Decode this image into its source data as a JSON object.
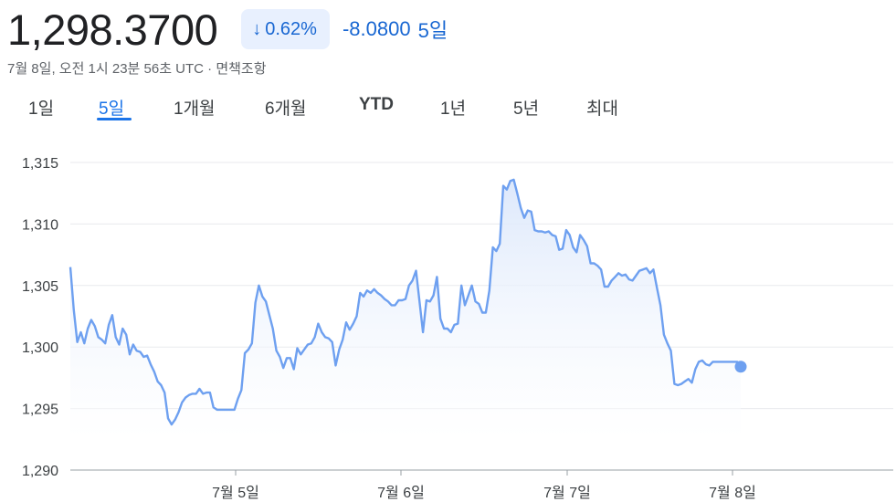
{
  "header": {
    "price": "1,298.3700",
    "percent_change": "0.62%",
    "arrow_icon": "arrow-down-icon",
    "abs_change": "-8.0800",
    "period": "5일",
    "timestamp": "7월 8일, 오전 1시 23분 56초 UTC · 면책조항"
  },
  "tabs": [
    {
      "label": "1일"
    },
    {
      "label": "5일",
      "active": true
    },
    {
      "label": "1개월"
    },
    {
      "label": "6개월"
    },
    {
      "label": "YTD"
    },
    {
      "label": "1년"
    },
    {
      "label": "5년"
    },
    {
      "label": "최대"
    }
  ],
  "colors": {
    "accent": "#1a73e8",
    "line": "#6ea0f0",
    "fill_top": "#dbe7fb",
    "grid": "#e8eaed",
    "badge_bg": "#e8f0fe"
  },
  "chart_data": {
    "type": "area",
    "title": "",
    "xlabel": "",
    "ylabel": "",
    "ylim": [
      1290,
      1315
    ],
    "y_ticks": [
      "1,315",
      "1,310",
      "1,305",
      "1,300",
      "1,295",
      "1,290"
    ],
    "x_ticks": [
      "7월 5일",
      "7월 6일",
      "7월 7일",
      "7월 8일"
    ],
    "grid": true,
    "series": [
      {
        "values": [
          1306.5,
          1303.0,
          1300.4,
          1301.2,
          1300.3,
          1301.5,
          1302.2,
          1301.7,
          1300.8,
          1300.6,
          1300.3,
          1301.8,
          1302.6,
          1300.8,
          1300.2,
          1301.5,
          1301.0,
          1299.4,
          1300.2,
          1299.7,
          1299.6,
          1299.2,
          1299.3,
          1298.6,
          1298.0,
          1297.2,
          1296.9,
          1296.3,
          1294.2,
          1293.7,
          1294.1,
          1294.7,
          1295.5,
          1295.9,
          1296.1,
          1296.2,
          1296.2,
          1296.6,
          1296.2,
          1296.3,
          1296.3,
          1295.1,
          1294.9,
          1294.9,
          1294.9,
          1294.9,
          1294.9,
          1294.9,
          1295.8,
          1296.5,
          1299.5,
          1299.8,
          1300.3,
          1303.6,
          1305.0,
          1304.1,
          1303.7,
          1302.6,
          1301.5,
          1299.7,
          1299.2,
          1298.3,
          1299.1,
          1299.1,
          1298.2,
          1299.9,
          1299.4,
          1299.8,
          1300.2,
          1300.3,
          1300.8,
          1301.9,
          1301.2,
          1300.8,
          1300.7,
          1300.4,
          1298.5,
          1299.8,
          1300.6,
          1302.0,
          1301.4,
          1301.9,
          1302.5,
          1304.4,
          1304.1,
          1304.6,
          1304.4,
          1304.7,
          1304.4,
          1304.2,
          1303.9,
          1303.7,
          1303.4,
          1303.4,
          1303.8,
          1303.8,
          1303.9,
          1305.0,
          1305.4,
          1306.2,
          1303.7,
          1301.2,
          1303.8,
          1303.7,
          1304.2,
          1305.7,
          1302.3,
          1301.5,
          1301.5,
          1301.2,
          1301.8,
          1301.9,
          1305.0,
          1303.4,
          1304.2,
          1305.0,
          1303.7,
          1303.5,
          1302.8,
          1302.8,
          1304.6,
          1308.1,
          1307.8,
          1308.4,
          1313.1,
          1312.8,
          1313.5,
          1313.6,
          1312.5,
          1311.3,
          1310.5,
          1311.1,
          1311.0,
          1309.5,
          1309.4,
          1309.4,
          1309.3,
          1309.4,
          1309.1,
          1309.0,
          1307.9,
          1308.0,
          1309.5,
          1309.1,
          1308.1,
          1307.7,
          1309.1,
          1308.7,
          1308.2,
          1306.8,
          1306.8,
          1306.6,
          1306.3,
          1304.9,
          1304.9,
          1305.4,
          1305.7,
          1306.0,
          1305.8,
          1305.9,
          1305.5,
          1305.4,
          1305.8,
          1306.2,
          1306.3,
          1306.4,
          1306.0,
          1306.3,
          1304.8,
          1303.4,
          1301.0,
          1300.3,
          1299.7,
          1297.0,
          1296.9,
          1297.0,
          1297.2,
          1297.4,
          1297.1,
          1298.2,
          1298.8,
          1298.9,
          1298.6,
          1298.5,
          1298.8,
          1298.8,
          1298.8,
          1298.8,
          1298.8,
          1298.8,
          1298.8,
          1298.8,
          1298.4
        ]
      }
    ],
    "last_point_marker": true
  }
}
